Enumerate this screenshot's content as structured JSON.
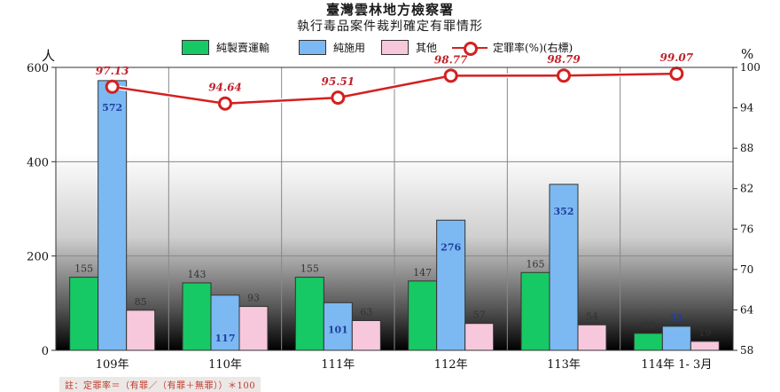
{
  "title": "臺灣雲林地方檢察署",
  "subtitle": "執行毒品案件裁判確定有罪情形",
  "left_unit": "人",
  "right_unit": "%",
  "note": "註：定罪率＝（有罪／（有罪＋無罪））＊100",
  "colors": {
    "series1": "#17c964",
    "series2": "#7cb9f2",
    "series3": "#f7c8dc",
    "line": "#d42020",
    "bar_value_label": "#333333",
    "blue_bar_label": "#1f3f9e",
    "rate_label": "#c0222a"
  },
  "chart_data": {
    "type": "bar+line",
    "categories": [
      "109年",
      "110年",
      "111年",
      "112年",
      "113年",
      "114年 1- 3月"
    ],
    "series": [
      {
        "name": "純製賣運輸",
        "values": [
          155,
          143,
          155,
          147,
          165,
          36
        ]
      },
      {
        "name": "純施用",
        "values": [
          572,
          117,
          101,
          276,
          352,
          51
        ]
      },
      {
        "name": "其他",
        "values": [
          85,
          93,
          63,
          57,
          54,
          19
        ]
      }
    ],
    "line_series": {
      "name": "定罪率(%)(右標)",
      "values": [
        97.13,
        94.64,
        95.51,
        98.77,
        98.79,
        99.07
      ]
    },
    "y_left": {
      "lim": [
        0,
        600
      ],
      "ticks": [
        0,
        200,
        400,
        600
      ]
    },
    "y_right": {
      "lim": [
        58,
        100
      ],
      "ticks": [
        58,
        64,
        70,
        76,
        82,
        88,
        94,
        100
      ]
    },
    "legend_position": "top"
  }
}
